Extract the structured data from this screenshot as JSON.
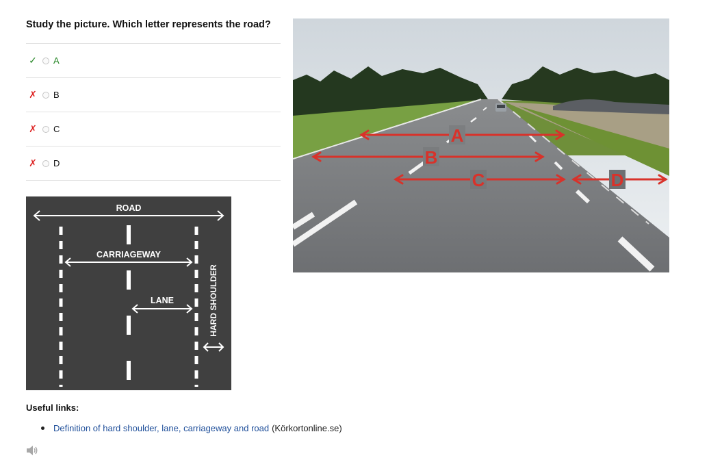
{
  "question": "Study the picture. Which letter represents the road?",
  "options": [
    {
      "mark": "✓",
      "status": "correct",
      "label": "A"
    },
    {
      "mark": "✗",
      "status": "incorrect",
      "label": "B"
    },
    {
      "mark": "✗",
      "status": "incorrect",
      "label": "C"
    },
    {
      "mark": "✗",
      "status": "incorrect",
      "label": "D"
    }
  ],
  "diagram": {
    "road": "ROAD",
    "carriageway": "CARRIAGEWAY",
    "lane": "LANE",
    "hard_shoulder": "HARD SHOULDER"
  },
  "photo": {
    "labels": [
      "A",
      "B",
      "C",
      "D"
    ]
  },
  "useful_links": {
    "heading": "Useful links:",
    "items": [
      {
        "text": "Definition of hard shoulder, lane, carriageway and road",
        "source": "(Körkortonline.se)"
      }
    ]
  },
  "icons": {
    "correct": "check-icon",
    "incorrect": "cross-icon",
    "audio": "speaker-icon"
  },
  "colors": {
    "correct": "#2d8a2d",
    "incorrect": "#dd2222",
    "link": "#1f4f9a",
    "annotation": "#d8322a"
  }
}
